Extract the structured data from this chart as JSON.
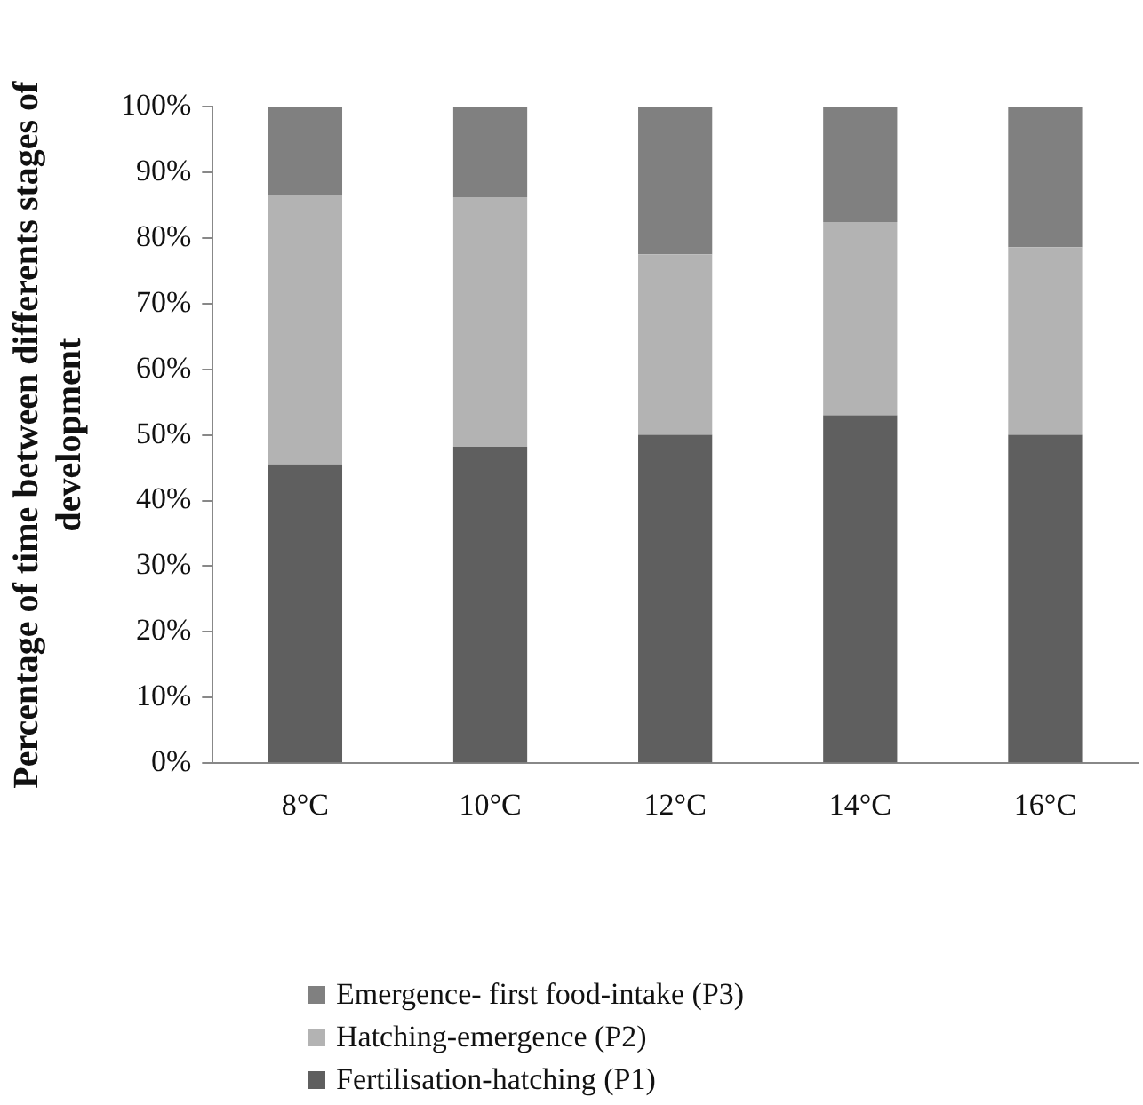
{
  "chart_data": {
    "type": "bar",
    "stacked": true,
    "ylabel": "Percentage of time between differents stages of development",
    "categories": [
      "8°C",
      "10°C",
      "12°C",
      "14°C",
      "16°C"
    ],
    "series": [
      {
        "name": "Fertilisation-hatching (P1)",
        "color": "#5f5f5f",
        "values": [
          45.5,
          48.2,
          50,
          53,
          50
        ]
      },
      {
        "name": "Hatching-emergence (P2)",
        "color": "#b3b3b3",
        "values": [
          41,
          38,
          27.5,
          29.4,
          28.6
        ]
      },
      {
        "name": "Emergence- first food-intake (P3)",
        "color": "#808080",
        "values": [
          13.5,
          13.8,
          22.5,
          17.6,
          21.4
        ]
      }
    ],
    "ylim": [
      0,
      100
    ],
    "yticks": [
      {
        "value": 0,
        "label": "0%"
      },
      {
        "value": 10,
        "label": "10%"
      },
      {
        "value": 20,
        "label": "20%"
      },
      {
        "value": 30,
        "label": "30%"
      },
      {
        "value": 40,
        "label": "40%"
      },
      {
        "value": 50,
        "label": "50%"
      },
      {
        "value": 60,
        "label": "60%"
      },
      {
        "value": 70,
        "label": "70%"
      },
      {
        "value": 80,
        "label": "80%"
      },
      {
        "value": 90,
        "label": "90%"
      },
      {
        "value": 100,
        "label": "100%"
      }
    ],
    "grid": false,
    "legend": "bottom"
  }
}
